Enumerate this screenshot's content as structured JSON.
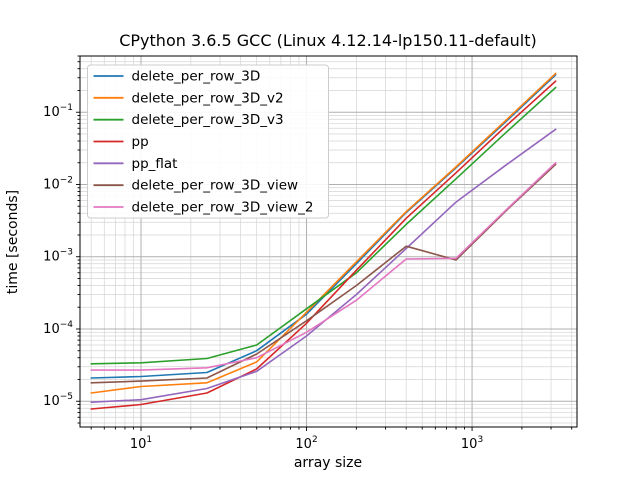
{
  "chart_data": {
    "type": "line",
    "title": "CPython 3.6.5 GCC (Linux 4.12.14-lp150.11-default)",
    "xlabel": "array size",
    "ylabel": "time [seconds]",
    "xscale": "log",
    "yscale": "log",
    "xlim": [
      4.28,
      4305
    ],
    "ylim": [
      4.4e-06,
      0.6
    ],
    "grid": "both",
    "legend_position": "upper-left",
    "background_color": "#ffffff",
    "spine_color": "#000000",
    "grid_major_color": "#b0b0b0",
    "grid_minor_color": "#d4d4d4",
    "x": [
      5,
      10,
      25,
      50,
      100,
      200,
      400,
      800,
      1600,
      3200
    ],
    "series": [
      {
        "name": "delete_per_row_3D",
        "color": "#1f77b4",
        "values": [
          2.1e-05,
          2.2e-05,
          2.5e-05,
          5e-05,
          0.00016,
          0.0008,
          0.0041,
          0.017,
          0.074,
          0.33
        ]
      },
      {
        "name": "delete_per_row_3D_v2",
        "color": "#ff7f0e",
        "values": [
          1.3e-05,
          1.6e-05,
          1.8e-05,
          3.5e-05,
          0.00017,
          0.00085,
          0.0042,
          0.0175,
          0.077,
          0.345
        ]
      },
      {
        "name": "delete_per_row_3D_v3",
        "color": "#2ca02c",
        "values": [
          3.3e-05,
          3.4e-05,
          3.9e-05,
          6e-05,
          0.00019,
          0.0006,
          0.0028,
          0.012,
          0.052,
          0.22
        ]
      },
      {
        "name": "pp",
        "color": "#d62728",
        "values": [
          7.8e-06,
          9e-06,
          1.3e-05,
          2.8e-05,
          0.00012,
          0.00065,
          0.0034,
          0.0145,
          0.064,
          0.27
        ]
      },
      {
        "name": "pp_flat",
        "color": "#9467bd",
        "values": [
          9.7e-06,
          1.05e-05,
          1.5e-05,
          2.6e-05,
          8e-05,
          0.0003,
          0.0013,
          0.0057,
          0.0185,
          0.058
        ]
      },
      {
        "name": "delete_per_row_3D_view",
        "color": "#8c564b",
        "values": [
          1.8e-05,
          1.9e-05,
          2.1e-05,
          4.5e-05,
          0.00013,
          0.0004,
          0.0014,
          0.0009,
          0.0043,
          0.019
        ]
      },
      {
        "name": "delete_per_row_3D_view_2",
        "color": "#e377c2",
        "values": [
          2.7e-05,
          2.7e-05,
          2.9e-05,
          4e-05,
          9e-05,
          0.00025,
          0.00093,
          0.00095,
          0.0044,
          0.02
        ]
      }
    ],
    "x_ticks": [
      {
        "v": 10,
        "base": "10",
        "sup": "1"
      },
      {
        "v": 100,
        "base": "10",
        "sup": "2"
      },
      {
        "v": 1000,
        "base": "10",
        "sup": "3"
      }
    ],
    "y_ticks": [
      {
        "v": 0.1,
        "base": "10",
        "sup": "−1"
      },
      {
        "v": 0.01,
        "base": "10",
        "sup": "−2"
      },
      {
        "v": 0.001,
        "base": "10",
        "sup": "−3"
      },
      {
        "v": 0.0001,
        "base": "10",
        "sup": "−4"
      },
      {
        "v": 1e-05,
        "base": "10",
        "sup": "−5"
      }
    ]
  }
}
